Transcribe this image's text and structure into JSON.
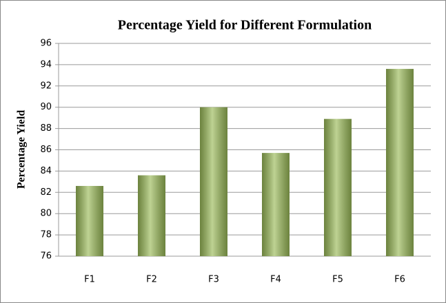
{
  "chart_data": {
    "type": "bar",
    "title": "Percentage Yield for Different Formulation",
    "y_label": "Percentage Yield",
    "categories": [
      "F1",
      "F2",
      "F3",
      "F4",
      "F5",
      "F6"
    ],
    "values": [
      82.6,
      83.6,
      90.0,
      85.7,
      88.9,
      93.6
    ],
    "color": "#9bbb59",
    "ylim": [
      76,
      96
    ],
    "yticks": [
      76,
      78,
      80,
      82,
      84,
      86,
      88,
      90,
      92,
      94,
      96
    ],
    "grid": true
  }
}
